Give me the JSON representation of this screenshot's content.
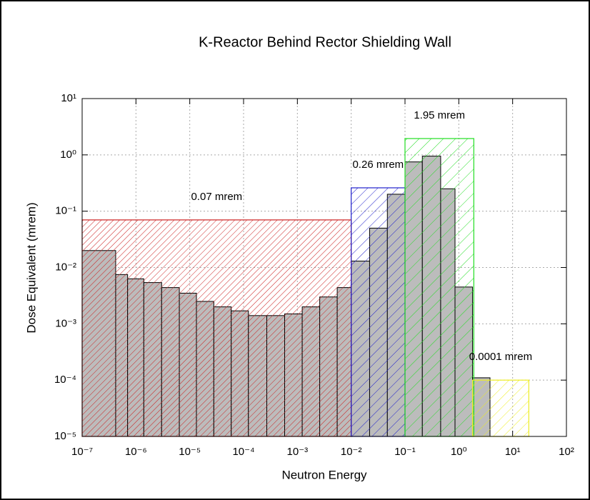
{
  "chart_data": {
    "type": "histogram",
    "title": "K-Reactor Behind Rector Shielding Wall",
    "xlabel": "Neutron Energy",
    "ylabel": "Dose Equivalent (mrem)",
    "xscale": "log",
    "yscale": "log",
    "grid": true,
    "xlim": [
      1e-07,
      100
    ],
    "ylim": [
      1e-05,
      10
    ],
    "xticks": [
      {
        "value": 1e-07,
        "label": "10⁻⁷"
      },
      {
        "value": 1e-06,
        "label": "10⁻⁶"
      },
      {
        "value": 1e-05,
        "label": "10⁻⁵"
      },
      {
        "value": 0.0001,
        "label": "10⁻⁴"
      },
      {
        "value": 0.001,
        "label": "10⁻³"
      },
      {
        "value": 0.01,
        "label": "10⁻²"
      },
      {
        "value": 0.1,
        "label": "10⁻¹"
      },
      {
        "value": 1,
        "label": "10⁰"
      },
      {
        "value": 10,
        "label": "10¹"
      },
      {
        "value": 100,
        "label": "10²"
      }
    ],
    "yticks": [
      {
        "value": 1e-05,
        "label": "10⁻⁵"
      },
      {
        "value": 0.0001,
        "label": "10⁻⁴"
      },
      {
        "value": 0.001,
        "label": "10⁻³"
      },
      {
        "value": 0.01,
        "label": "10⁻²"
      },
      {
        "value": 0.1,
        "label": "10⁻¹"
      },
      {
        "value": 1,
        "label": "10⁰"
      },
      {
        "value": 10,
        "label": "10¹"
      }
    ],
    "bar_color": "#bcbcbc",
    "bins": [
      1e-07,
      4.2e-07,
      7e-07,
      1.4e-06,
      3e-06,
      6.4e-06,
      1.33e-05,
      2.8e-05,
      5.9e-05,
      0.000123,
      0.00027,
      0.00058,
      0.00123,
      0.0026,
      0.0055,
      0.01,
      0.022,
      0.047,
      0.1,
      0.21,
      0.46,
      0.85,
      1.8,
      3.8
    ],
    "values": [
      0.02,
      0.0075,
      0.0063,
      0.0054,
      0.0044,
      0.0035,
      0.0025,
      0.002,
      0.0017,
      0.0014,
      0.0014,
      0.0015,
      0.002,
      0.003,
      0.0044,
      0.013,
      0.05,
      0.2,
      0.75,
      0.95,
      0.25,
      0.0045,
      0.00011
    ],
    "regions": [
      {
        "label": "0.07 mrem",
        "value": 0.07,
        "range": [
          1e-07,
          0.01
        ],
        "color": "#cc2222"
      },
      {
        "label": "0.26 mrem",
        "value": 0.26,
        "range": [
          0.01,
          0.1
        ],
        "color": "#2222cc"
      },
      {
        "label": "1.95 mrem",
        "value": 1.95,
        "range": [
          0.1,
          1.9
        ],
        "color": "#22dd22"
      },
      {
        "label": "0.0001 mrem",
        "value": 0.0001,
        "range": [
          1.8,
          20
        ],
        "color": "#eeee22"
      }
    ]
  }
}
